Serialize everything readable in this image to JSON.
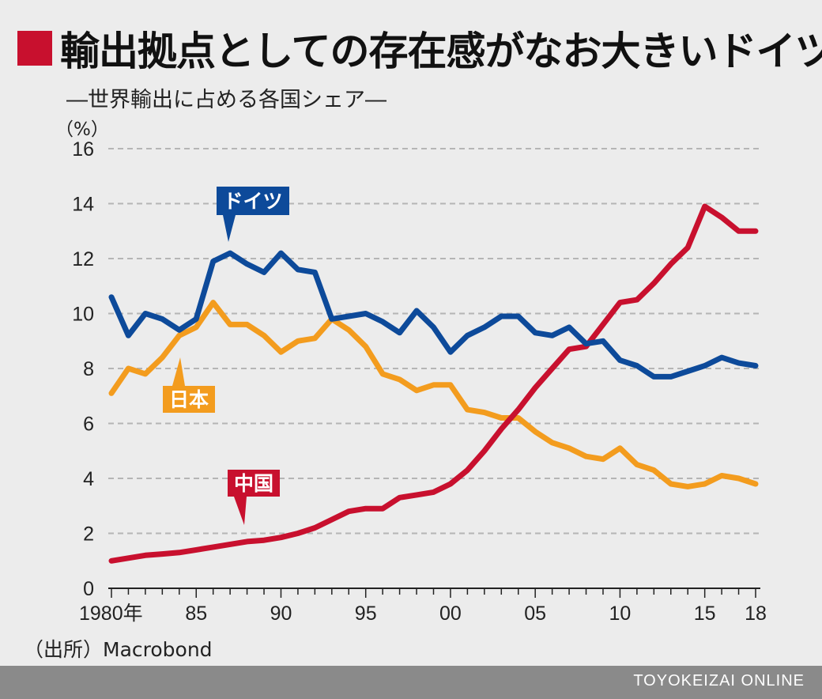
{
  "title": "輸出拠点としての存在感がなお大きいドイツ",
  "subtitle": "―世界輸出に占める各国シェア―",
  "source": "（出所）Macrobond",
  "footer": "TOYOKEIZAI ONLINE",
  "colors": {
    "title_square": "#c8102e",
    "germany": "#0d4a9a",
    "japan": "#f39c1e",
    "china": "#c8102e",
    "grid": "#b5b5b5",
    "background": "#ececec",
    "footer_bar": "#8a8a8a"
  },
  "chart_data": {
    "type": "line",
    "unit_label": "（%）",
    "ylim": [
      0,
      16
    ],
    "yticks": [
      0,
      2,
      4,
      6,
      8,
      10,
      12,
      14,
      16
    ],
    "x": [
      1980,
      1981,
      1982,
      1983,
      1984,
      1985,
      1986,
      1987,
      1988,
      1989,
      1990,
      1991,
      1992,
      1993,
      1994,
      1995,
      1996,
      1997,
      1998,
      1999,
      2000,
      2001,
      2002,
      2003,
      2004,
      2005,
      2006,
      2007,
      2008,
      2009,
      2010,
      2011,
      2012,
      2013,
      2014,
      2015,
      2016,
      2017,
      2018
    ],
    "xtick_values": [
      1980,
      1985,
      1990,
      1995,
      2000,
      2005,
      2010,
      2015,
      2018
    ],
    "xtick_labels": [
      "1980年",
      "85",
      "90",
      "95",
      "00",
      "05",
      "10",
      "15",
      "18"
    ],
    "grid": true,
    "series": [
      {
        "name": "ドイツ",
        "color": "#0d4a9a",
        "values": [
          10.6,
          9.2,
          10.0,
          9.8,
          9.4,
          9.8,
          11.9,
          12.2,
          11.8,
          11.5,
          12.2,
          11.6,
          11.5,
          9.8,
          9.9,
          10.0,
          9.7,
          9.3,
          10.1,
          9.5,
          8.6,
          9.2,
          9.5,
          9.9,
          9.9,
          9.3,
          9.2,
          9.5,
          8.9,
          9.0,
          8.3,
          8.1,
          7.7,
          7.7,
          7.9,
          8.1,
          8.4,
          8.2,
          8.1
        ]
      },
      {
        "name": "日本",
        "color": "#f39c1e",
        "values": [
          7.1,
          8.0,
          7.8,
          8.4,
          9.2,
          9.5,
          10.4,
          9.6,
          9.6,
          9.2,
          8.6,
          9.0,
          9.1,
          9.8,
          9.4,
          8.8,
          7.8,
          7.6,
          7.2,
          7.4,
          7.4,
          6.5,
          6.4,
          6.2,
          6.2,
          5.7,
          5.3,
          5.1,
          4.8,
          4.7,
          5.1,
          4.5,
          4.3,
          3.8,
          3.7,
          3.8,
          4.1,
          4.0,
          3.8
        ]
      },
      {
        "name": "中国",
        "color": "#c8102e",
        "values": [
          1.0,
          1.1,
          1.2,
          1.25,
          1.3,
          1.4,
          1.5,
          1.6,
          1.7,
          1.75,
          1.85,
          2.0,
          2.2,
          2.5,
          2.8,
          2.9,
          2.9,
          3.3,
          3.4,
          3.5,
          3.8,
          4.3,
          5.0,
          5.8,
          6.5,
          7.3,
          8.0,
          8.7,
          8.8,
          9.6,
          10.4,
          10.5,
          11.1,
          11.8,
          12.4,
          13.9,
          13.5,
          13.0,
          13.0
        ]
      }
    ],
    "labels": [
      {
        "text": "ドイツ",
        "series": 0,
        "position": "above"
      },
      {
        "text": "日本",
        "series": 1,
        "position": "below"
      },
      {
        "text": "中国",
        "series": 2,
        "position": "above"
      }
    ]
  }
}
